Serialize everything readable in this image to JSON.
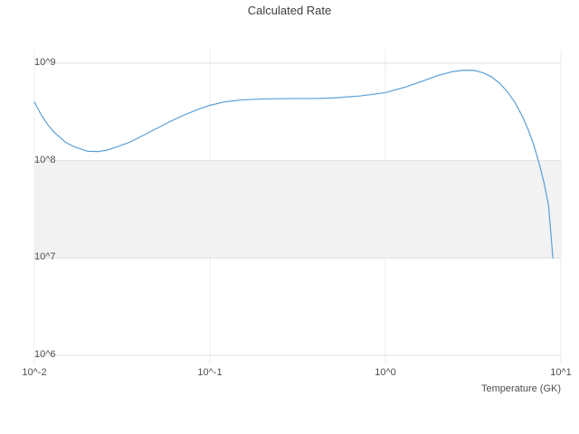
{
  "chart_data": {
    "type": "line",
    "title": "Calculated Rate",
    "xlabel": "Temperature (GK)",
    "ylabel": "",
    "xscale": "log",
    "yscale": "log",
    "xlim": [
      0.01,
      10
    ],
    "ylim": [
      1000000.0,
      1000000000.0
    ],
    "grid": true,
    "legend_position": "none",
    "xticks": [
      {
        "value": 0.01,
        "label": "10^-2"
      },
      {
        "value": 0.1,
        "label": "10^-1"
      },
      {
        "value": 1,
        "label": "10^0"
      },
      {
        "value": 10,
        "label": "10^1"
      }
    ],
    "yticks": [
      {
        "value": 1000000.0,
        "label": "10^6"
      },
      {
        "value": 10000000.0,
        "label": "10^7"
      },
      {
        "value": 100000000.0,
        "label": "10^8"
      },
      {
        "value": 1000000000.0,
        "label": "10^9"
      }
    ],
    "shaded_band": {
      "ymin": 10000000.0,
      "ymax": 100000000.0,
      "color": "#f2f2f2"
    },
    "colors": {
      "line": "#5b9fd6",
      "grid_major": "#e0e0e0",
      "grid_minor": "#ededed",
      "text": "#4d4d4d"
    },
    "series": [
      {
        "name": "calculated-rate",
        "x": [
          0.01,
          0.011,
          0.012,
          0.013,
          0.015,
          0.017,
          0.02,
          0.023,
          0.026,
          0.03,
          0.035,
          0.04,
          0.05,
          0.06,
          0.07,
          0.085,
          0.1,
          0.12,
          0.15,
          0.2,
          0.3,
          0.4,
          0.5,
          0.7,
          0.85,
          1.0,
          1.3,
          1.6,
          2.0,
          2.4,
          2.8,
          3.2,
          3.6,
          4.0,
          4.5,
          5.0,
          5.5,
          6.0,
          6.5,
          7.0,
          7.5,
          8.0,
          8.5,
          9.0
        ],
        "y": [
          400000000.0,
          290000000.0,
          230000000.0,
          195000000.0,
          155000000.0,
          138000000.0,
          125000000.0,
          124000000.0,
          128000000.0,
          140000000.0,
          155000000.0,
          175000000.0,
          215000000.0,
          255000000.0,
          290000000.0,
          335000000.0,
          370000000.0,
          400000000.0,
          420000000.0,
          430000000.0,
          435000000.0,
          435000000.0,
          440000000.0,
          460000000.0,
          480000000.0,
          500000000.0,
          570000000.0,
          650000000.0,
          750000000.0,
          820000000.0,
          850000000.0,
          845000000.0,
          800000000.0,
          730000000.0,
          620000000.0,
          500000000.0,
          390000000.0,
          290000000.0,
          210000000.0,
          145000000.0,
          95000000.0,
          60000000.0,
          35000000.0,
          10000000.0
        ]
      }
    ]
  }
}
